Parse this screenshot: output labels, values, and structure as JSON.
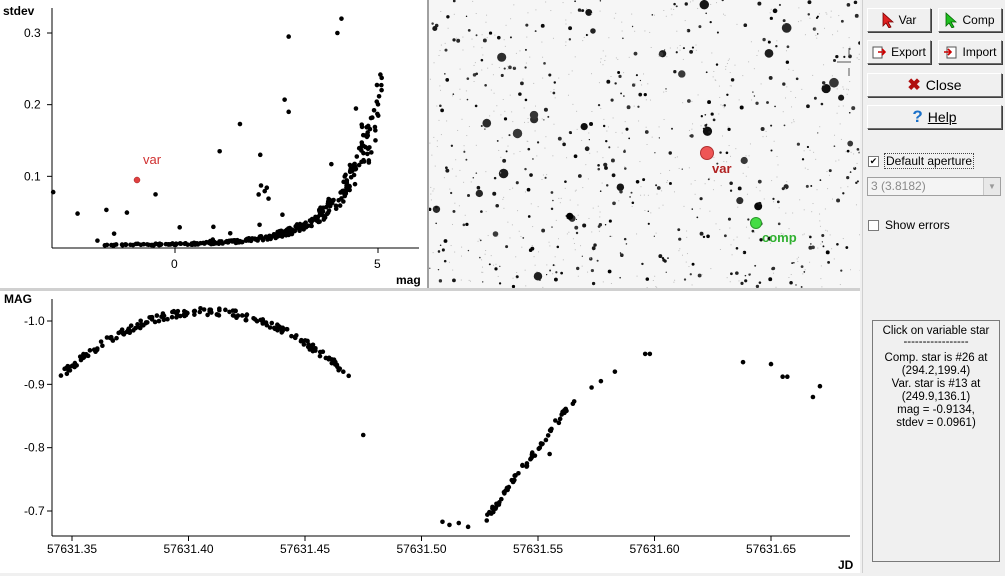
{
  "scatter_plot": {
    "ylabel": "stdev",
    "xlabel": "mag",
    "x_ticks": [
      "0",
      "5"
    ],
    "y_ticks": [
      "0.1",
      "0.2",
      "0.3"
    ],
    "var_label": "var",
    "var_point": {
      "mag": -0.9134,
      "stdev": 0.0961
    },
    "var_color": "#e04040"
  },
  "star_field": {
    "var_label": "var",
    "comp_label": "comp",
    "var_color": "#ee5555",
    "comp_color": "#44dd44"
  },
  "chart_data": [
    {
      "type": "scatter",
      "ylabel": "stdev",
      "xlabel": "mag",
      "xlim": [
        -3,
        5.3
      ],
      "ylim": [
        0,
        0.32
      ],
      "highlight": {
        "name": "var",
        "x": -0.9134,
        "y": 0.0961
      }
    },
    {
      "type": "scatter",
      "ylabel": "MAG",
      "xlabel": "JD",
      "x_ticks": [
        "57631.35",
        "57631.40",
        "57631.45",
        "57631.50",
        "57631.55",
        "57631.60",
        "57631.65"
      ],
      "y_ticks": [
        "-1.0",
        "-0.9",
        "-0.8",
        "-0.7"
      ],
      "xlim": [
        57631.343,
        57631.683
      ],
      "ylim": [
        -0.65,
        -1.04
      ],
      "y_inverted": true
    }
  ],
  "light_curve": {
    "ylabel": "MAG",
    "xlabel": "JD",
    "x_ticks": [
      "57631.35",
      "57631.40",
      "57631.45",
      "57631.50",
      "57631.55",
      "57631.60",
      "57631.65"
    ],
    "y_ticks": [
      "-1.0",
      "-0.9",
      "-0.8",
      "-0.7"
    ]
  },
  "toolbar": {
    "var_label": "Var",
    "comp_label": "Comp",
    "export_label": "Export",
    "import_label": "Import",
    "close_label": "Close",
    "help_label": "Help"
  },
  "options": {
    "default_aperture_label": "Default aperture",
    "default_aperture_checked": true,
    "aperture_value": "3 (3.8182)",
    "show_errors_label": "Show errors",
    "show_errors_checked": false
  },
  "info": {
    "title": "Click on variable star",
    "divider": "-----------------",
    "comp_line": "Comp. star is #26 at\n(294.2,199.4)",
    "var_line": "Var. star is #13 at\n(249.9,136.1)",
    "mag_line": "mag = -0.9134,\nstdev = 0.0961)"
  }
}
